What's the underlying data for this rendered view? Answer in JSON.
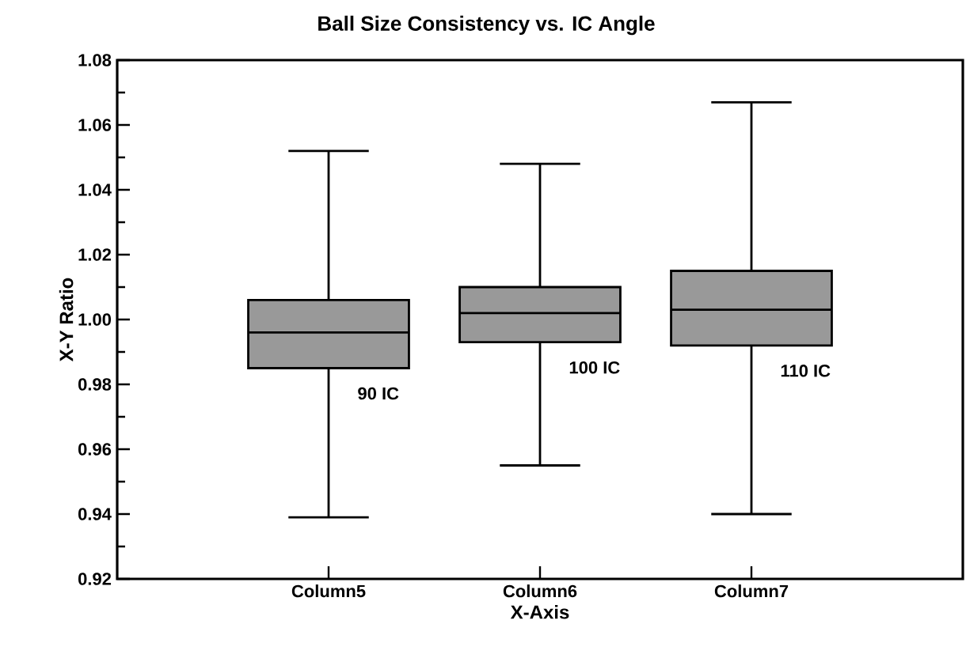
{
  "chart_data": {
    "type": "box",
    "title": "Ball Size Consistency vs. IC Angle",
    "xlabel": "X-Axis",
    "ylabel": "X-Y Ratio",
    "categories": [
      "Column5",
      "Column6",
      "Column7"
    ],
    "color": "#999999",
    "boxes": [
      {
        "low": 0.939,
        "q1": 0.985,
        "median": 0.996,
        "q3": 1.006,
        "high": 1.052
      },
      {
        "low": 0.955,
        "q1": 0.993,
        "median": 1.002,
        "q3": 1.01,
        "high": 1.048
      },
      {
        "low": 0.94,
        "q1": 0.992,
        "median": 1.003,
        "q3": 1.015,
        "high": 1.067
      }
    ],
    "ylim": [
      0.92,
      1.08
    ],
    "yticks": [
      {
        "value": 0.92,
        "label": "0.92"
      },
      {
        "value": 0.94,
        "label": "0.94"
      },
      {
        "value": 0.96,
        "label": "0.96"
      },
      {
        "value": 0.98,
        "label": "0.98"
      },
      {
        "value": 1.0,
        "label": "1.00"
      },
      {
        "value": 1.02,
        "label": "1.02"
      },
      {
        "value": 1.04,
        "label": "1.04"
      },
      {
        "value": 1.06,
        "label": "1.06"
      },
      {
        "value": 1.08,
        "label": "1.08"
      }
    ],
    "grid": false,
    "annotations": [
      "90 IC",
      "100 IC",
      "110 IC"
    ]
  }
}
